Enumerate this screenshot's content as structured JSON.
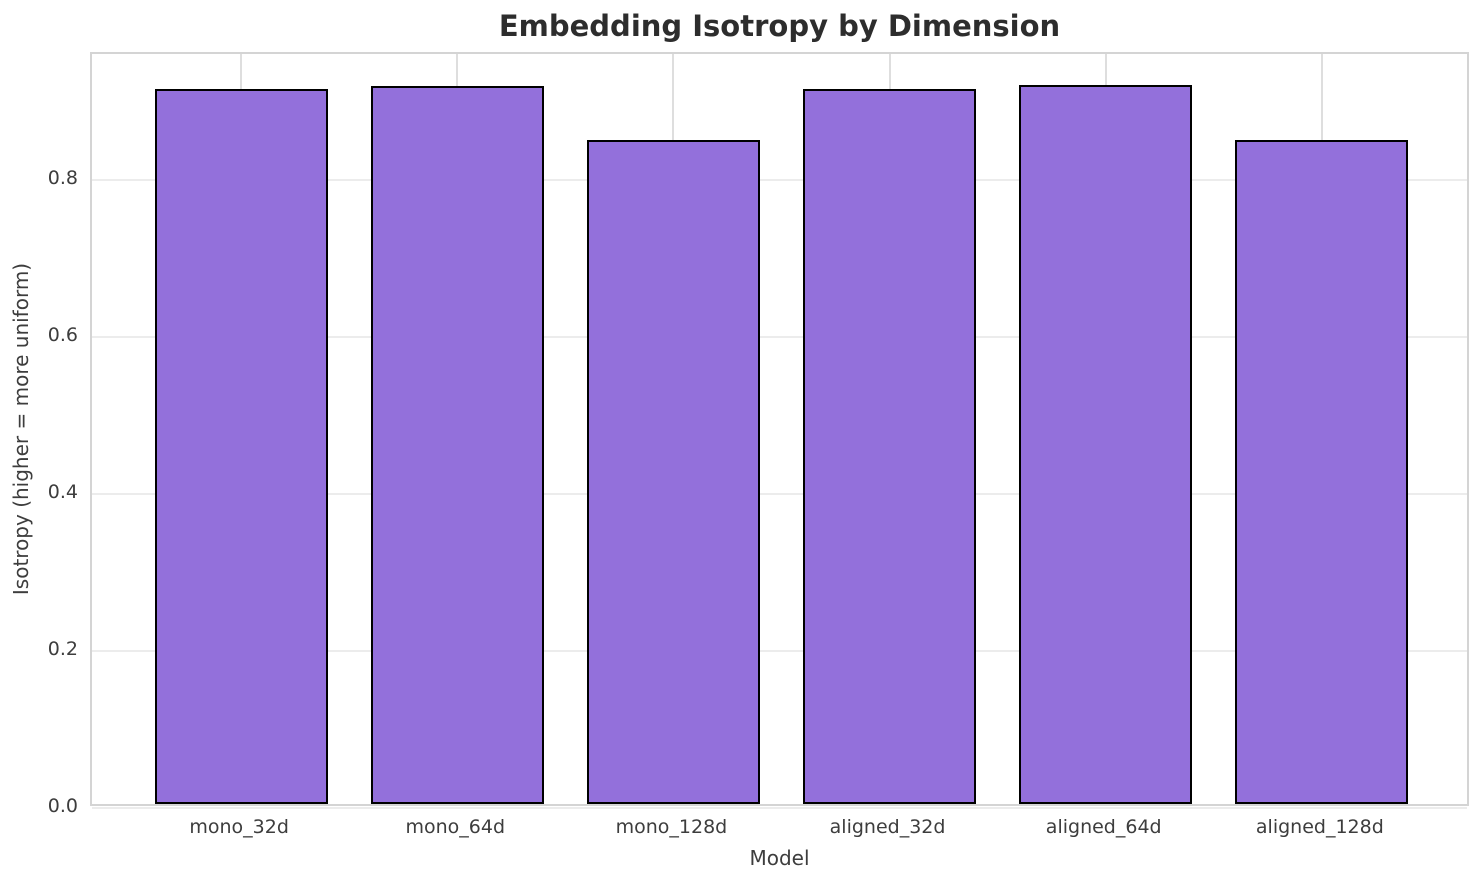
{
  "chart_data": {
    "type": "bar",
    "title": "Embedding Isotropy by Dimension",
    "xlabel": "Model",
    "ylabel": "Isotropy (higher = more uniform)",
    "categories": [
      "mono_32d",
      "mono_64d",
      "mono_128d",
      "aligned_32d",
      "aligned_64d",
      "aligned_128d"
    ],
    "values": [
      0.911,
      0.914,
      0.846,
      0.911,
      0.915,
      0.846
    ],
    "ylim": [
      0,
      0.96
    ],
    "yticks": [
      0.0,
      0.2,
      0.4,
      0.6,
      0.8
    ],
    "ytick_labels": [
      "0.0",
      "0.2",
      "0.4",
      "0.6",
      "0.8"
    ],
    "grid": true,
    "legend": "none",
    "bar_width_fraction": 0.8,
    "colors": {
      "bar_fill": "#9370db",
      "bar_edge": "#000000",
      "grid_horizontal": "#ececec",
      "grid_vertical": "#dedede",
      "spine": "#d4d4d4",
      "title_text": "#2d2d2d",
      "tick_text": "#3d3d3d",
      "background": "#ffffff"
    }
  }
}
